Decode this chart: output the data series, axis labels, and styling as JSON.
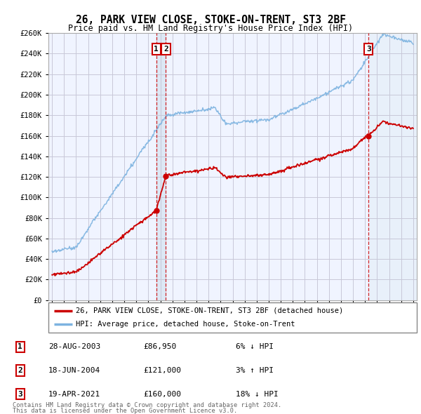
{
  "title": "26, PARK VIEW CLOSE, STOKE-ON-TRENT, ST3 2BF",
  "subtitle": "Price paid vs. HM Land Registry's House Price Index (HPI)",
  "ylim": [
    0,
    260000
  ],
  "yticks": [
    0,
    20000,
    40000,
    60000,
    80000,
    100000,
    120000,
    140000,
    160000,
    180000,
    200000,
    220000,
    240000,
    260000
  ],
  "ytick_labels": [
    "£0",
    "£20K",
    "£40K",
    "£60K",
    "£80K",
    "£100K",
    "£120K",
    "£140K",
    "£160K",
    "£180K",
    "£200K",
    "£220K",
    "£240K",
    "£260K"
  ],
  "hpi_color": "#7db3e0",
  "price_color": "#cc0000",
  "sale_marker_color": "#cc0000",
  "sale1_date_label": "28-AUG-2003",
  "sale1_price_label": "£86,950",
  "sale1_pct_label": "6% ↓ HPI",
  "sale1_x": 2003.66,
  "sale1_y": 86950,
  "sale2_date_label": "18-JUN-2004",
  "sale2_price_label": "£121,000",
  "sale2_pct_label": "3% ↑ HPI",
  "sale2_x": 2004.46,
  "sale2_y": 121000,
  "sale3_date_label": "19-APR-2021",
  "sale3_price_label": "£160,000",
  "sale3_pct_label": "18% ↓ HPI",
  "sale3_x": 2021.29,
  "sale3_y": 160000,
  "legend_line1": "26, PARK VIEW CLOSE, STOKE-ON-TRENT, ST3 2BF (detached house)",
  "legend_line2": "HPI: Average price, detached house, Stoke-on-Trent",
  "footer1": "Contains HM Land Registry data © Crown copyright and database right 2024.",
  "footer2": "This data is licensed under the Open Government Licence v3.0.",
  "background_color": "#ffffff",
  "plot_bg_color": "#f0f4ff",
  "grid_color": "#c8c8d8",
  "xlim": [
    1994.7,
    2025.3
  ],
  "shade_band_color": "#dce8f5",
  "shade_right_color": "#e8f0fa"
}
